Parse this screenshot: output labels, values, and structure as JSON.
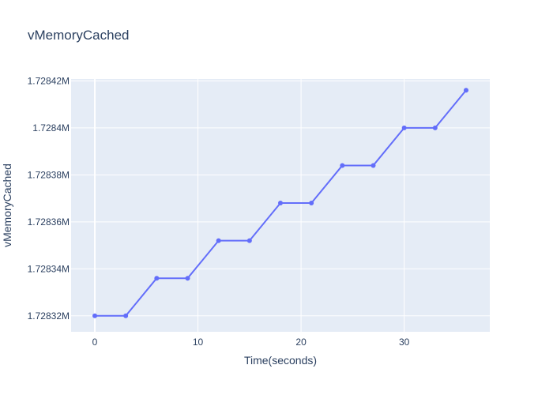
{
  "chart_data": {
    "type": "line",
    "title": "vMemoryCached",
    "xlabel": "Time(seconds)",
    "ylabel": "vMemoryCached",
    "xlim": [
      -2.3,
      38.3
    ],
    "ylim": [
      1728313.2,
      1728420.8
    ],
    "x_ticks": [
      0,
      10,
      20,
      30
    ],
    "x_tick_labels": [
      "0",
      "10",
      "20",
      "30"
    ],
    "y_ticks": [
      1728320,
      1728340,
      1728360,
      1728380,
      1728400,
      1728420
    ],
    "y_tick_labels": [
      "1.72832M",
      "1.72834M",
      "1.72836M",
      "1.72838M",
      "1.7284M",
      "1.72842M"
    ],
    "grid": true,
    "legend": "none",
    "line_color": "#636efa",
    "series": [
      {
        "x": [
          0,
          3,
          6,
          9,
          12,
          15,
          18,
          21,
          24,
          27,
          30,
          33,
          36
        ],
        "values": [
          1728320,
          1728320,
          1728336,
          1728336,
          1728352,
          1728352,
          1728368,
          1728368,
          1728384,
          1728384,
          1728400,
          1728400,
          1728416
        ]
      }
    ]
  }
}
